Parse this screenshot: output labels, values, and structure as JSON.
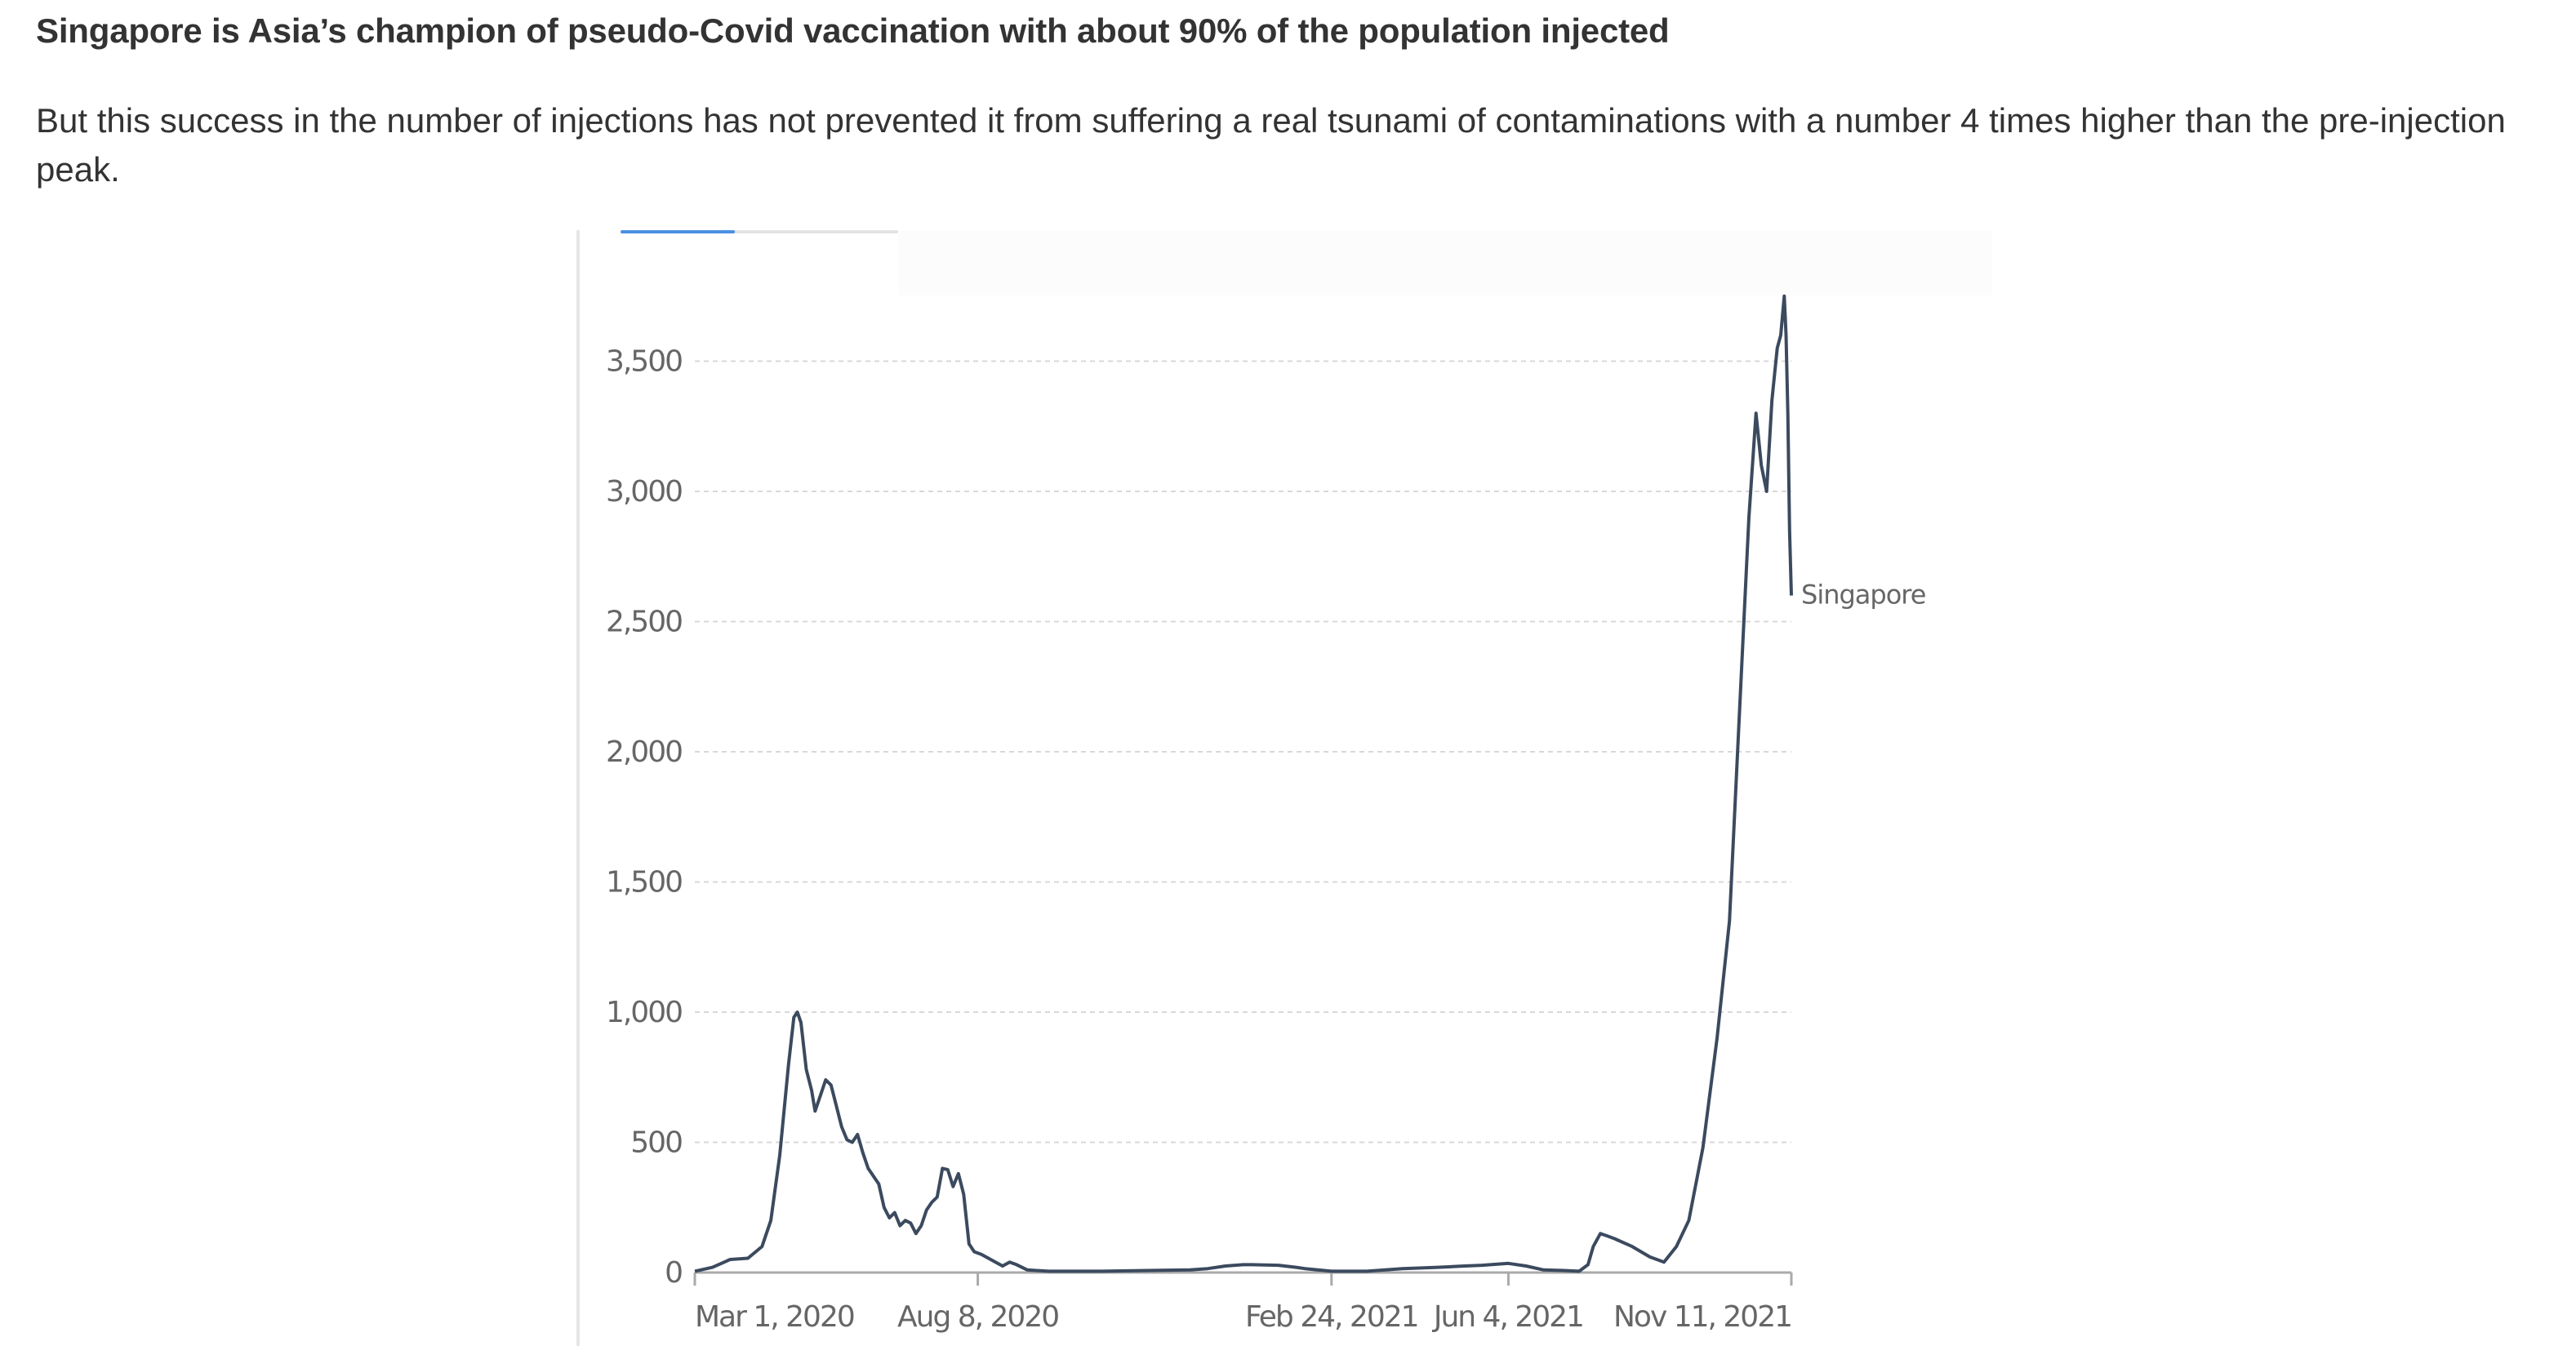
{
  "article": {
    "headline": "Singapore is Asia’s champion of pseudo-Covid vaccination with about 90% of the population injected",
    "intro": "But this success in the number of injections has not prevented it from suffering a real tsunami of contaminations with a number 4 times higher than the pre-injection peak."
  },
  "colors": {
    "line": "#3b4a5e",
    "grid": "#d8d8d8",
    "axis": "#aaaaaa",
    "tab_active": "#4a90e2"
  },
  "chart_data": {
    "type": "line",
    "title": "",
    "xlabel": "",
    "ylabel": "",
    "x_start_date": "2020-03-01",
    "x_unit": "days since Mar 1, 2020",
    "xlim": [
      0,
      620
    ],
    "ylim": [
      0,
      3800
    ],
    "grid": true,
    "legend": "inline-end-label",
    "yticks": [
      {
        "value": 0,
        "label": "0"
      },
      {
        "value": 500,
        "label": "500"
      },
      {
        "value": 1000,
        "label": "1,000"
      },
      {
        "value": 1500,
        "label": "1,500"
      },
      {
        "value": 2000,
        "label": "2,000"
      },
      {
        "value": 2500,
        "label": "2,500"
      },
      {
        "value": 3000,
        "label": "3,000"
      },
      {
        "value": 3500,
        "label": "3,500"
      }
    ],
    "xticks": [
      {
        "value": 0,
        "label": "Mar 1, 2020"
      },
      {
        "value": 160,
        "label": "Aug 8, 2020"
      },
      {
        "value": 360,
        "label": "Feb 24, 2021"
      },
      {
        "value": 460,
        "label": "Jun 4, 2021"
      },
      {
        "value": 620,
        "label": "Nov 11, 2021"
      }
    ],
    "series": [
      {
        "name": "Singapore",
        "x": [
          0,
          10,
          20,
          30,
          38,
          43,
          48,
          53,
          56,
          58,
          60,
          63,
          66,
          68,
          71,
          74,
          77,
          80,
          83,
          86,
          89,
          92,
          95,
          98,
          101,
          104,
          107,
          110,
          113,
          116,
          119,
          122,
          125,
          128,
          131,
          134,
          137,
          140,
          143,
          146,
          149,
          152,
          155,
          158,
          162,
          166,
          170,
          174,
          178,
          182,
          188,
          200,
          230,
          260,
          280,
          290,
          300,
          310,
          315,
          330,
          340,
          345,
          360,
          380,
          400,
          420,
          435,
          445,
          460,
          470,
          480,
          490,
          500,
          505,
          508,
          512,
          516,
          520,
          530,
          540,
          548,
          555,
          562,
          570,
          578,
          585,
          591,
          596,
          600,
          603,
          606,
          609,
          612,
          614,
          616,
          617,
          618,
          619,
          620
        ],
        "values": [
          5,
          20,
          50,
          55,
          100,
          200,
          450,
          800,
          980,
          1000,
          960,
          780,
          700,
          620,
          680,
          740,
          720,
          640,
          560,
          510,
          500,
          530,
          460,
          400,
          370,
          340,
          250,
          210,
          230,
          180,
          200,
          190,
          150,
          180,
          240,
          270,
          290,
          400,
          395,
          330,
          380,
          300,
          110,
          80,
          70,
          55,
          40,
          25,
          40,
          30,
          10,
          5,
          5,
          8,
          10,
          15,
          25,
          30,
          30,
          28,
          20,
          15,
          5,
          5,
          15,
          20,
          25,
          28,
          35,
          25,
          10,
          8,
          5,
          30,
          100,
          150,
          140,
          130,
          100,
          60,
          40,
          100,
          200,
          480,
          900,
          1350,
          2200,
          2900,
          3300,
          3100,
          3000,
          3350,
          3550,
          3600,
          3750,
          3600,
          3300,
          2850,
          2600
        ]
      }
    ],
    "series_label": "Singapore"
  }
}
